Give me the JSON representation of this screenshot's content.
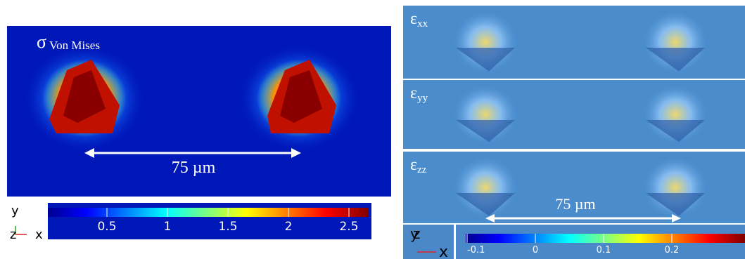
{
  "left_panel": {
    "symbol": "σ",
    "label": "Von Mises",
    "scale_bar": "75 µm",
    "colorbar_ticks": [
      "0.5",
      "1",
      "1.5",
      "2",
      "2.5"
    ],
    "axes": {
      "y": "y",
      "z": "z",
      "x": "x"
    }
  },
  "right_panel": {
    "strains": [
      {
        "symbol": "ε",
        "subscript": "xx"
      },
      {
        "symbol": "ε",
        "subscript": "yy"
      },
      {
        "symbol": "ε",
        "subscript": "zz"
      }
    ],
    "scale_bar": "75 µm",
    "colorbar_ticks": [
      "-0.1",
      "0",
      "0.1",
      "0.2"
    ],
    "axes": {
      "y": "y",
      "z": "z",
      "x": "x"
    }
  }
}
